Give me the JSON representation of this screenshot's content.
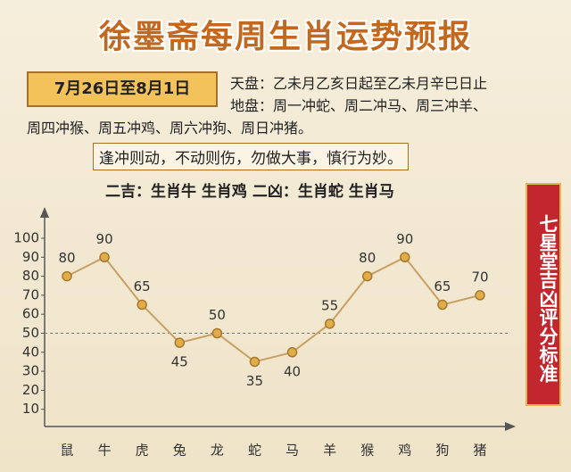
{
  "header": {
    "title": "徐墨斋每周生肖运势预报",
    "date": "7月26日至8月1日",
    "lines": [
      "天盘：乙未月乙亥日起至乙未月辛巳日止",
      "地盘：周一冲蛇、周二冲马、周三冲羊、",
      "周四冲猴、周五冲鸡、周六冲狗、周日冲猪。"
    ],
    "motto": "逢冲则动，不动则伤，勿做大事，慎行为妙。",
    "summary": "二吉：生肖牛 生肖鸡  二凶：生肖蛇 生肖马",
    "side": "七星堂吉凶评分标准"
  },
  "chart_data": {
    "type": "line",
    "categories": [
      "鼠",
      "牛",
      "虎",
      "兔",
      "龙",
      "蛇",
      "马",
      "羊",
      "猴",
      "鸡",
      "狗",
      "猪"
    ],
    "values": [
      80,
      90,
      65,
      45,
      50,
      35,
      40,
      55,
      80,
      90,
      65,
      70
    ],
    "color": "#c9a064",
    "ylim": [
      0,
      100
    ],
    "yticks": [
      10,
      20,
      30,
      40,
      50,
      60,
      70,
      80,
      90,
      100
    ],
    "dashed_line": 50
  }
}
